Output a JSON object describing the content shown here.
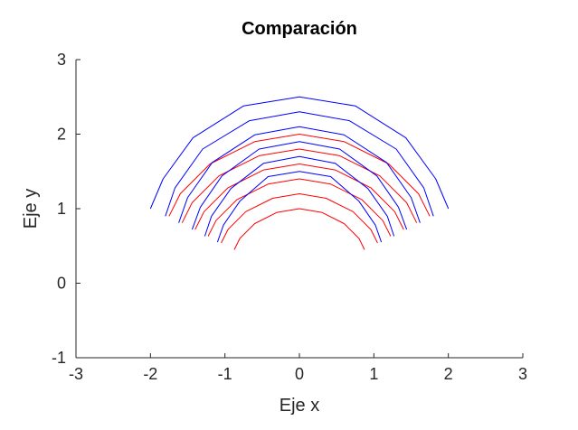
{
  "chart_data": {
    "type": "line",
    "title": "Comparación",
    "xlabel": "Eje x",
    "ylabel": "Eje y",
    "xlim": [
      -3,
      3
    ],
    "ylim": [
      -1,
      3
    ],
    "xticks": [
      -3,
      -2,
      -1,
      0,
      1,
      2,
      3
    ],
    "yticks": [
      -1,
      0,
      1,
      2,
      3
    ],
    "xtick_labels": [
      "-3",
      "-2",
      "-1",
      "0",
      "1",
      "2",
      "3"
    ],
    "ytick_labels": [
      "-1",
      "0",
      "1",
      "2",
      "3"
    ],
    "grid": false,
    "series": [
      {
        "color": "#ff0000",
        "points": [
          [
            -0.875,
            0.45
          ],
          [
            -0.8,
            0.6
          ],
          [
            -0.6,
            0.8
          ],
          [
            -0.3,
            0.95
          ],
          [
            0,
            1.0
          ],
          [
            0.3,
            0.95
          ],
          [
            0.6,
            0.8
          ],
          [
            0.8,
            0.6
          ],
          [
            0.875,
            0.45
          ]
        ]
      },
      {
        "color": "#ff0000",
        "points": [
          [
            -1.05,
            0.54
          ],
          [
            -0.96,
            0.72
          ],
          [
            -0.72,
            0.96
          ],
          [
            -0.36,
            1.14
          ],
          [
            0,
            1.2
          ],
          [
            0.36,
            1.14
          ],
          [
            0.72,
            0.96
          ],
          [
            0.96,
            0.72
          ],
          [
            1.05,
            0.54
          ]
        ]
      },
      {
        "color": "#ff0000",
        "points": [
          [
            -1.225,
            0.63
          ],
          [
            -1.12,
            0.84
          ],
          [
            -0.84,
            1.12
          ],
          [
            -0.42,
            1.33
          ],
          [
            0,
            1.4
          ],
          [
            0.42,
            1.33
          ],
          [
            0.84,
            1.12
          ],
          [
            1.12,
            0.84
          ],
          [
            1.225,
            0.63
          ]
        ]
      },
      {
        "color": "#ff0000",
        "points": [
          [
            -1.4,
            0.72
          ],
          [
            -1.28,
            0.96
          ],
          [
            -0.96,
            1.28
          ],
          [
            -0.48,
            1.52
          ],
          [
            0,
            1.6
          ],
          [
            0.48,
            1.52
          ],
          [
            0.96,
            1.28
          ],
          [
            1.28,
            0.96
          ],
          [
            1.4,
            0.72
          ]
        ]
      },
      {
        "color": "#ff0000",
        "points": [
          [
            -1.575,
            0.81
          ],
          [
            -1.44,
            1.08
          ],
          [
            -1.08,
            1.44
          ],
          [
            -0.54,
            1.71
          ],
          [
            0,
            1.8
          ],
          [
            0.54,
            1.71
          ],
          [
            1.08,
            1.44
          ],
          [
            1.44,
            1.08
          ],
          [
            1.575,
            0.81
          ]
        ]
      },
      {
        "color": "#ff0000",
        "points": [
          [
            -1.75,
            0.9
          ],
          [
            -1.6,
            1.2
          ],
          [
            -1.2,
            1.6
          ],
          [
            -0.6,
            1.9
          ],
          [
            0,
            2.0
          ],
          [
            0.6,
            1.9
          ],
          [
            1.2,
            1.6
          ],
          [
            1.6,
            1.2
          ],
          [
            1.75,
            0.9
          ]
        ]
      },
      {
        "color": "#0000ff",
        "points": [
          [
            -1.1,
            0.55
          ],
          [
            -1.02,
            0.78
          ],
          [
            -0.8,
            1.1
          ],
          [
            -0.42,
            1.43
          ],
          [
            0,
            1.5
          ],
          [
            0.42,
            1.43
          ],
          [
            0.8,
            1.1
          ],
          [
            1.02,
            0.78
          ],
          [
            1.1,
            0.55
          ]
        ]
      },
      {
        "color": "#0000ff",
        "points": [
          [
            -1.27,
            0.63
          ],
          [
            -1.18,
            0.9
          ],
          [
            -0.92,
            1.27
          ],
          [
            -0.48,
            1.61
          ],
          [
            0,
            1.7
          ],
          [
            0.48,
            1.61
          ],
          [
            0.92,
            1.27
          ],
          [
            1.18,
            0.9
          ],
          [
            1.27,
            0.63
          ]
        ]
      },
      {
        "color": "#0000ff",
        "points": [
          [
            -1.44,
            0.72
          ],
          [
            -1.33,
            1.02
          ],
          [
            -1.04,
            1.44
          ],
          [
            -0.54,
            1.8
          ],
          [
            0,
            1.9
          ],
          [
            0.54,
            1.8
          ],
          [
            1.04,
            1.44
          ],
          [
            1.33,
            1.02
          ],
          [
            1.44,
            0.72
          ]
        ]
      },
      {
        "color": "#0000ff",
        "points": [
          [
            -1.62,
            0.81
          ],
          [
            -1.5,
            1.15
          ],
          [
            -1.17,
            1.62
          ],
          [
            -0.6,
            1.99
          ],
          [
            0,
            2.1
          ],
          [
            0.6,
            1.99
          ],
          [
            1.17,
            1.62
          ],
          [
            1.5,
            1.15
          ],
          [
            1.62,
            0.81
          ]
        ]
      },
      {
        "color": "#0000ff",
        "points": [
          [
            -1.8,
            0.9
          ],
          [
            -1.67,
            1.28
          ],
          [
            -1.3,
            1.8
          ],
          [
            -0.67,
            2.18
          ],
          [
            0,
            2.3
          ],
          [
            0.67,
            2.18
          ],
          [
            1.3,
            1.8
          ],
          [
            1.67,
            1.28
          ],
          [
            1.8,
            0.9
          ]
        ]
      },
      {
        "color": "#0000ff",
        "points": [
          [
            -2.0,
            1.0
          ],
          [
            -1.83,
            1.4
          ],
          [
            -1.43,
            1.95
          ],
          [
            -0.75,
            2.38
          ],
          [
            0,
            2.5
          ],
          [
            0.75,
            2.38
          ],
          [
            1.43,
            1.95
          ],
          [
            1.83,
            1.4
          ],
          [
            2.0,
            1.0
          ]
        ]
      }
    ]
  }
}
